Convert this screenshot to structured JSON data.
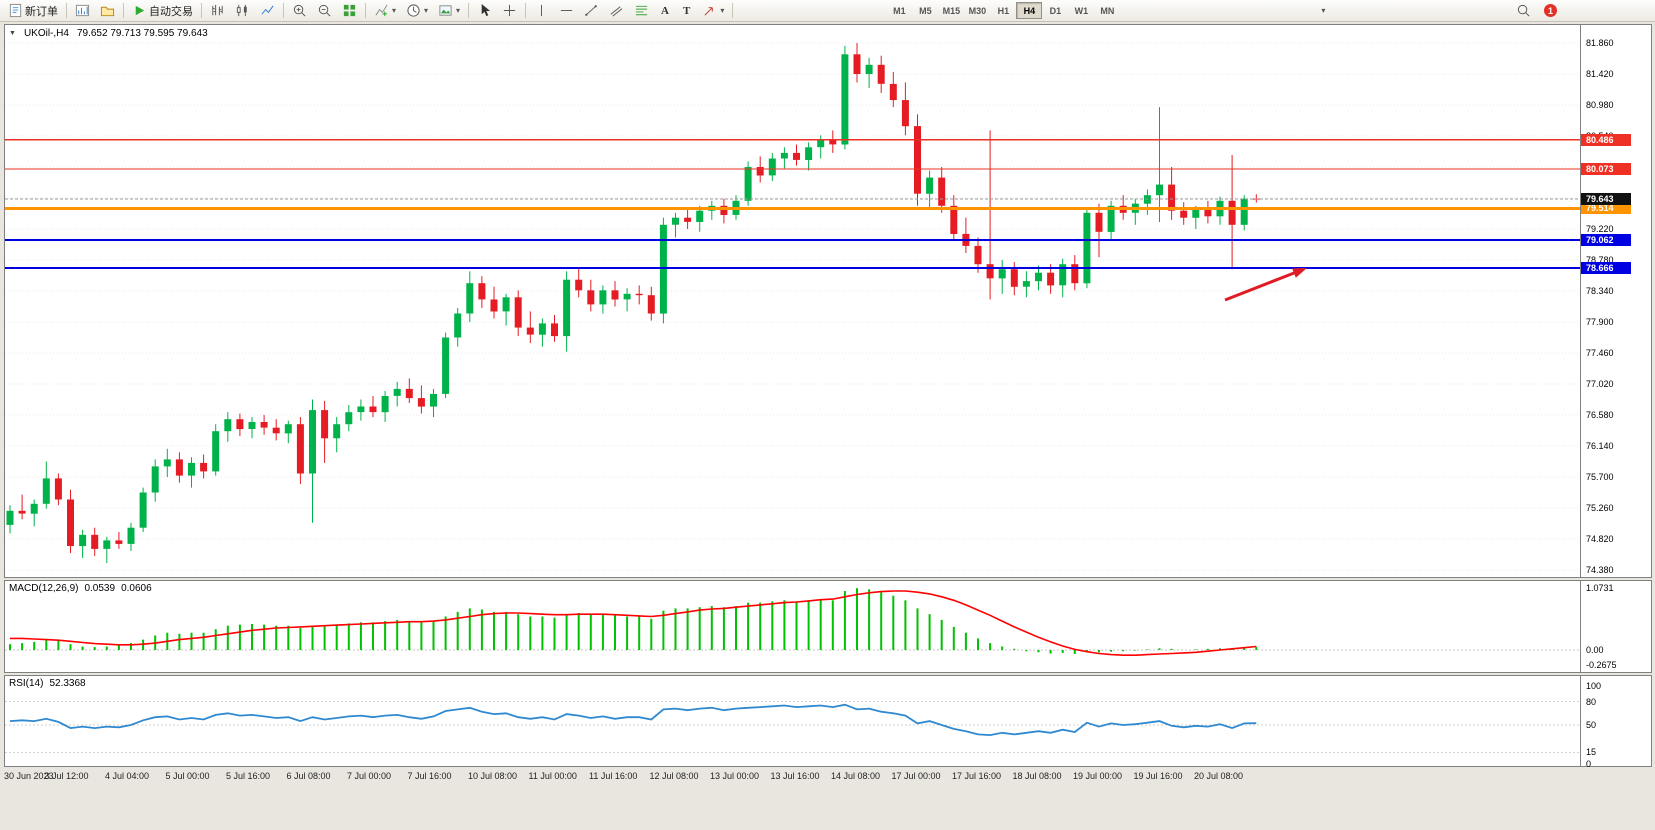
{
  "toolbar": {
    "new_order": "新订单",
    "autotrading": "自动交易",
    "timeframes": [
      "M1",
      "M5",
      "M15",
      "M30",
      "H1",
      "H4",
      "D1",
      "W1",
      "MN"
    ],
    "active_timeframe": "H4",
    "notification_count": "1"
  },
  "icons": {
    "caret_down": "▾",
    "collapse": "▼",
    "text_tool": "A",
    "label_tool": "T"
  },
  "chart_data": {
    "type": "candlestick",
    "symbol": "UKOil-",
    "timeframe": "H4",
    "title": "UKOil-,H4",
    "ohlc_text": "79.652 79.713 79.595 79.643",
    "ohlc_display": {
      "open": "79.652",
      "high": "79.713",
      "low": "79.595",
      "close": "79.643"
    },
    "colors": {
      "up": "#00b24a",
      "down": "#e51c23",
      "macd_hist": "#00c200",
      "macd_signal": "#ff0000",
      "rsi_line": "#2f89d0"
    },
    "y_axis": {
      "max": 81.86,
      "min": 74.38,
      "ticks": [
        "81.860",
        "81.420",
        "80.980",
        "80.540",
        "80.100",
        "79.660",
        "79.220",
        "78.780",
        "78.340",
        "77.900",
        "77.460",
        "77.020",
        "76.580",
        "76.140",
        "75.700",
        "75.260",
        "74.820",
        "74.380"
      ]
    },
    "x_axis": {
      "label_every_n_candles": 5,
      "labels": [
        "30 Jun 2023",
        "3 Jul 12:00",
        "4 Jul 04:00",
        "5 Jul 00:00",
        "5 Jul 16:00",
        "6 Jul 08:00",
        "7 Jul 00:00",
        "7 Jul 16:00",
        "10 Jul 08:00",
        "11 Jul 00:00",
        "11 Jul 16:00",
        "12 Jul 08:00",
        "13 Jul 00:00",
        "13 Jul 16:00",
        "14 Jul 08:00",
        "17 Jul 00:00",
        "17 Jul 16:00",
        "18 Jul 08:00",
        "19 Jul 00:00",
        "19 Jul 16:00",
        "20 Jul 08:00"
      ]
    },
    "candles": [
      [
        75.02,
        75.3,
        74.9,
        75.22
      ],
      [
        75.22,
        75.45,
        75.1,
        75.18
      ],
      [
        75.18,
        75.38,
        75.0,
        75.32
      ],
      [
        75.32,
        75.92,
        75.25,
        75.68
      ],
      [
        75.68,
        75.75,
        75.3,
        75.38
      ],
      [
        75.38,
        75.52,
        74.62,
        74.72
      ],
      [
        74.72,
        74.95,
        74.55,
        74.88
      ],
      [
        74.88,
        74.98,
        74.58,
        74.68
      ],
      [
        74.68,
        74.85,
        74.48,
        74.8
      ],
      [
        74.8,
        74.92,
        74.68,
        74.75
      ],
      [
        74.75,
        75.05,
        74.65,
        74.98
      ],
      [
        74.98,
        75.55,
        74.92,
        75.48
      ],
      [
        75.48,
        75.95,
        75.35,
        75.85
      ],
      [
        75.85,
        76.1,
        75.7,
        75.95
      ],
      [
        75.95,
        76.05,
        75.62,
        75.72
      ],
      [
        75.72,
        75.98,
        75.55,
        75.9
      ],
      [
        75.9,
        76.02,
        75.68,
        75.78
      ],
      [
        75.78,
        76.45,
        75.72,
        76.35
      ],
      [
        76.35,
        76.62,
        76.2,
        76.52
      ],
      [
        76.52,
        76.6,
        76.28,
        76.38
      ],
      [
        76.38,
        76.55,
        76.25,
        76.48
      ],
      [
        76.48,
        76.58,
        76.3,
        76.4
      ],
      [
        76.4,
        76.52,
        76.22,
        76.32
      ],
      [
        76.32,
        76.5,
        76.18,
        76.45
      ],
      [
        76.45,
        76.55,
        75.6,
        75.75
      ],
      [
        75.75,
        76.8,
        75.05,
        76.65
      ],
      [
        76.65,
        76.78,
        75.9,
        76.25
      ],
      [
        76.25,
        76.55,
        76.05,
        76.45
      ],
      [
        76.45,
        76.72,
        76.35,
        76.62
      ],
      [
        76.62,
        76.8,
        76.5,
        76.7
      ],
      [
        76.7,
        76.85,
        76.55,
        76.62
      ],
      [
        76.62,
        76.92,
        76.48,
        76.85
      ],
      [
        76.85,
        77.05,
        76.7,
        76.95
      ],
      [
        76.95,
        77.1,
        76.75,
        76.82
      ],
      [
        76.82,
        77.0,
        76.6,
        76.7
      ],
      [
        76.7,
        76.95,
        76.55,
        76.88
      ],
      [
        76.88,
        77.75,
        76.82,
        77.68
      ],
      [
        77.68,
        78.1,
        77.55,
        78.02
      ],
      [
        78.02,
        78.62,
        77.9,
        78.45
      ],
      [
        78.45,
        78.55,
        78.1,
        78.22
      ],
      [
        78.22,
        78.4,
        77.95,
        78.05
      ],
      [
        78.05,
        78.3,
        77.85,
        78.25
      ],
      [
        78.25,
        78.35,
        77.7,
        77.82
      ],
      [
        77.82,
        78.05,
        77.6,
        77.72
      ],
      [
        77.72,
        77.95,
        77.55,
        77.88
      ],
      [
        77.88,
        78.0,
        77.62,
        77.7
      ],
      [
        77.7,
        78.62,
        77.48,
        78.5
      ],
      [
        78.5,
        78.68,
        78.25,
        78.35
      ],
      [
        78.35,
        78.5,
        78.05,
        78.15
      ],
      [
        78.15,
        78.42,
        78.02,
        78.35
      ],
      [
        78.35,
        78.48,
        78.12,
        78.22
      ],
      [
        78.22,
        78.38,
        78.05,
        78.3
      ],
      [
        78.3,
        78.42,
        78.15,
        78.28
      ],
      [
        78.28,
        78.4,
        77.92,
        78.02
      ],
      [
        78.02,
        79.38,
        77.88,
        79.28
      ],
      [
        79.28,
        79.45,
        79.1,
        79.38
      ],
      [
        79.38,
        79.52,
        79.22,
        79.32
      ],
      [
        79.32,
        79.55,
        79.18,
        79.48
      ],
      [
        79.48,
        79.62,
        79.35,
        79.55
      ],
      [
        79.55,
        79.65,
        79.3,
        79.42
      ],
      [
        79.42,
        79.7,
        79.35,
        79.62
      ],
      [
        79.62,
        80.18,
        79.55,
        80.1
      ],
      [
        80.1,
        80.25,
        79.88,
        79.98
      ],
      [
        79.98,
        80.3,
        79.9,
        80.22
      ],
      [
        80.22,
        80.38,
        80.08,
        80.3
      ],
      [
        80.3,
        80.42,
        80.12,
        80.2
      ],
      [
        80.2,
        80.45,
        80.05,
        80.38
      ],
      [
        80.38,
        80.55,
        80.22,
        80.48
      ],
      [
        80.48,
        80.62,
        80.3,
        80.42
      ],
      [
        80.42,
        81.82,
        80.35,
        81.7
      ],
      [
        81.7,
        81.86,
        81.3,
        81.42
      ],
      [
        81.42,
        81.65,
        81.22,
        81.55
      ],
      [
        81.55,
        81.68,
        81.15,
        81.28
      ],
      [
        81.28,
        81.45,
        80.95,
        81.05
      ],
      [
        81.05,
        81.3,
        80.55,
        80.68
      ],
      [
        80.68,
        80.85,
        79.55,
        79.72
      ],
      [
        79.72,
        80.05,
        79.5,
        79.95
      ],
      [
        79.95,
        80.1,
        79.45,
        79.55
      ],
      [
        79.55,
        79.7,
        79.05,
        79.15
      ],
      [
        79.15,
        79.38,
        78.88,
        78.98
      ],
      [
        78.98,
        79.1,
        78.6,
        78.72
      ],
      [
        78.72,
        80.62,
        78.22,
        78.52
      ],
      [
        78.52,
        78.78,
        78.3,
        78.65
      ],
      [
        78.65,
        78.75,
        78.28,
        78.4
      ],
      [
        78.4,
        78.62,
        78.25,
        78.48
      ],
      [
        78.48,
        78.7,
        78.35,
        78.6
      ],
      [
        78.6,
        78.72,
        78.3,
        78.42
      ],
      [
        78.42,
        78.8,
        78.25,
        78.72
      ],
      [
        78.72,
        78.85,
        78.35,
        78.45
      ],
      [
        78.45,
        79.52,
        78.38,
        79.45
      ],
      [
        79.45,
        79.58,
        78.82,
        79.18
      ],
      [
        79.18,
        79.62,
        79.05,
        79.55
      ],
      [
        79.55,
        79.7,
        79.35,
        79.45
      ],
      [
        79.45,
        79.65,
        79.28,
        79.58
      ],
      [
        79.58,
        79.78,
        79.42,
        79.7
      ],
      [
        79.7,
        80.95,
        79.32,
        79.85
      ],
      [
        79.85,
        80.1,
        79.35,
        79.48
      ],
      [
        79.48,
        79.6,
        79.28,
        79.38
      ],
      [
        79.38,
        79.55,
        79.22,
        79.5
      ],
      [
        79.5,
        79.62,
        79.3,
        79.4
      ],
      [
        79.4,
        79.68,
        79.28,
        79.62
      ],
      [
        79.62,
        80.27,
        78.65,
        79.28
      ],
      [
        79.28,
        79.7,
        79.2,
        79.65
      ],
      [
        79.652,
        79.713,
        79.595,
        79.643
      ]
    ],
    "price_lines": [
      {
        "price": 80.486,
        "label": "80.486",
        "color": "#ee3124",
        "width": 1.2
      },
      {
        "price": 80.073,
        "label": "80.073",
        "color": "#ee3124",
        "width": 1.2
      },
      {
        "price": 79.514,
        "label": "79.514",
        "color": "#ff9400",
        "width": 3
      },
      {
        "price": 79.062,
        "label": "79.062",
        "color": "#0000e0",
        "width": 2
      },
      {
        "price": 78.666,
        "label": "78.666",
        "color": "#0000e0",
        "width": 2
      }
    ],
    "current_price": {
      "value": 79.643,
      "label": "79.643",
      "badge_color": "#111111"
    },
    "macd": {
      "name": "MACD(12,26,9)",
      "value_main": "0.0539",
      "value_signal": "0.0606",
      "axis": [
        "1.0731",
        "0.00",
        "-0.2675"
      ],
      "hist": [
        0.1,
        0.12,
        0.14,
        0.18,
        0.16,
        0.1,
        0.06,
        0.05,
        0.06,
        0.08,
        0.12,
        0.18,
        0.25,
        0.3,
        0.28,
        0.3,
        0.3,
        0.36,
        0.42,
        0.44,
        0.45,
        0.44,
        0.42,
        0.42,
        0.38,
        0.42,
        0.42,
        0.44,
        0.46,
        0.48,
        0.48,
        0.5,
        0.52,
        0.5,
        0.48,
        0.5,
        0.58,
        0.66,
        0.72,
        0.7,
        0.66,
        0.66,
        0.62,
        0.58,
        0.58,
        0.56,
        0.62,
        0.64,
        0.62,
        0.62,
        0.6,
        0.58,
        0.58,
        0.54,
        0.68,
        0.72,
        0.72,
        0.74,
        0.76,
        0.74,
        0.76,
        0.82,
        0.82,
        0.84,
        0.86,
        0.84,
        0.86,
        0.88,
        0.86,
        1.02,
        1.07,
        1.05,
        1.0,
        0.94,
        0.86,
        0.72,
        0.62,
        0.52,
        0.4,
        0.3,
        0.2,
        0.12,
        0.06,
        0.02,
        -0.02,
        -0.04,
        -0.06,
        -0.05,
        -0.07,
        -0.02,
        -0.04,
        -0.03,
        -0.02,
        -0.01,
        0.01,
        0.03,
        0.02,
        0.0,
        0.01,
        0.02,
        0.03,
        0.03,
        0.05,
        0.054
      ],
      "signal": [
        0.2,
        0.2,
        0.19,
        0.18,
        0.17,
        0.15,
        0.13,
        0.11,
        0.1,
        0.09,
        0.09,
        0.1,
        0.12,
        0.15,
        0.18,
        0.2,
        0.22,
        0.25,
        0.28,
        0.31,
        0.34,
        0.36,
        0.38,
        0.39,
        0.4,
        0.41,
        0.42,
        0.43,
        0.44,
        0.45,
        0.46,
        0.47,
        0.48,
        0.49,
        0.49,
        0.5,
        0.52,
        0.55,
        0.58,
        0.61,
        0.63,
        0.64,
        0.64,
        0.63,
        0.62,
        0.61,
        0.61,
        0.62,
        0.62,
        0.62,
        0.61,
        0.6,
        0.59,
        0.58,
        0.6,
        0.63,
        0.66,
        0.69,
        0.71,
        0.72,
        0.74,
        0.76,
        0.78,
        0.8,
        0.82,
        0.83,
        0.85,
        0.87,
        0.88,
        0.92,
        0.96,
        0.99,
        1.01,
        1.02,
        1.02,
        1.0,
        0.97,
        0.92,
        0.86,
        0.78,
        0.69,
        0.6,
        0.5,
        0.4,
        0.31,
        0.22,
        0.14,
        0.07,
        0.01,
        -0.03,
        -0.06,
        -0.08,
        -0.09,
        -0.09,
        -0.08,
        -0.07,
        -0.06,
        -0.05,
        -0.04,
        -0.02,
        0.0,
        0.02,
        0.04,
        0.06
      ]
    },
    "rsi": {
      "name": "RSI(14)",
      "value": "52.3368",
      "axis": [
        "100",
        "80",
        "50",
        "15",
        "0"
      ],
      "levels": [
        80,
        50,
        15
      ],
      "values": [
        55,
        56,
        55,
        58,
        54,
        46,
        48,
        46,
        48,
        47,
        50,
        56,
        60,
        61,
        57,
        59,
        57,
        63,
        65,
        62,
        63,
        61,
        59,
        60,
        55,
        60,
        57,
        59,
        61,
        62,
        60,
        62,
        63,
        60,
        58,
        61,
        68,
        70,
        72,
        67,
        64,
        65,
        60,
        58,
        60,
        57,
        64,
        62,
        59,
        61,
        58,
        60,
        60,
        57,
        70,
        71,
        69,
        71,
        72,
        69,
        71,
        72,
        73,
        74,
        75,
        73,
        74,
        75,
        73,
        76,
        70,
        71,
        67,
        65,
        62,
        52,
        55,
        50,
        45,
        42,
        38,
        37,
        40,
        38,
        40,
        42,
        40,
        44,
        41,
        53,
        48,
        52,
        50,
        51,
        53,
        55,
        49,
        47,
        49,
        48,
        51,
        46,
        52,
        52.34
      ]
    },
    "annotation": {
      "type": "arrow",
      "color": "#e01b24",
      "from": [
        1225,
        300
      ],
      "to": [
        1307,
        268
      ]
    }
  }
}
